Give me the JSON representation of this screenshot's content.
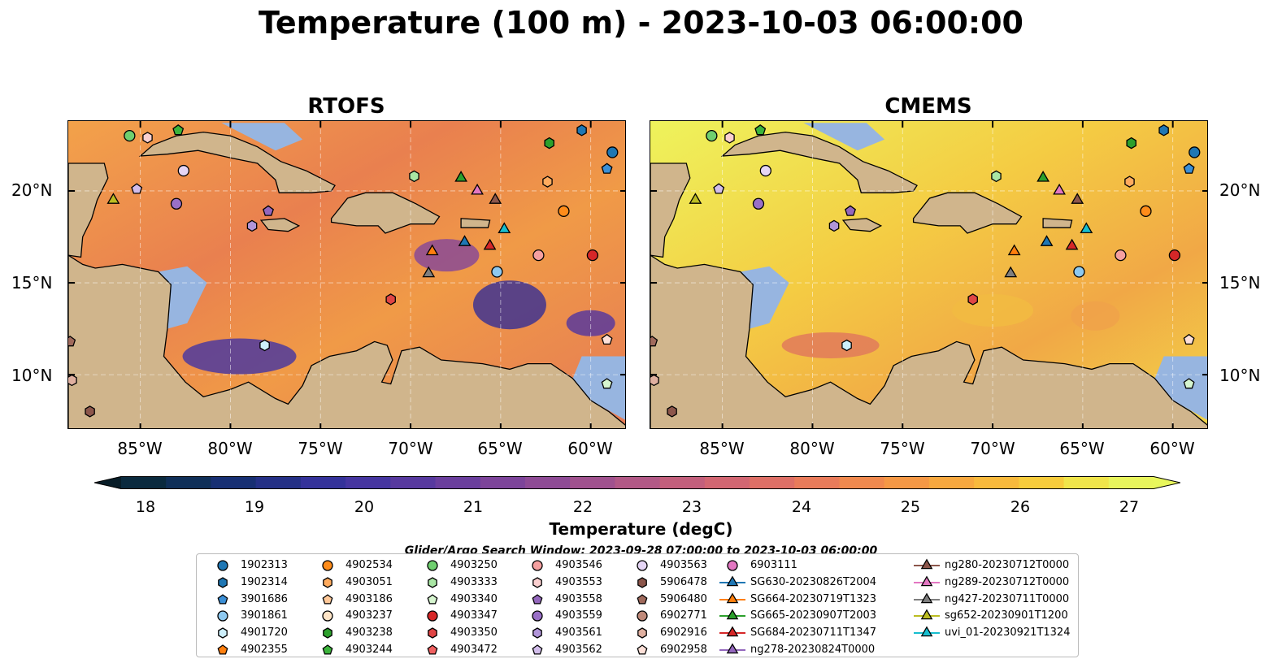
{
  "title": "Temperature (100 m) - 2023-10-03 06:00:00",
  "panels": [
    {
      "title": "RTOFS",
      "variant": "warm"
    },
    {
      "title": "CMEMS",
      "variant": "yellow"
    }
  ],
  "lat_ticks": [
    "20°N",
    "15°N",
    "10°N"
  ],
  "lat_tick_values": [
    20,
    15,
    10
  ],
  "lon_ticks": [
    "85°W",
    "80°W",
    "75°W",
    "70°W",
    "65°W",
    "60°W"
  ],
  "lon_tick_values": [
    -85,
    -80,
    -75,
    -70,
    -65,
    -60
  ],
  "colorbar": {
    "label": "Temperature (degC)",
    "ticks": [
      "18",
      "19",
      "20",
      "21",
      "22",
      "23",
      "24",
      "25",
      "26",
      "27"
    ],
    "min": 18,
    "max": 27,
    "step": 0.5,
    "extend": "both",
    "colors": [
      "#0a2a3e",
      "#0f2f58",
      "#172f73",
      "#243086",
      "#34329a",
      "#4535a0",
      "#57399f",
      "#6a3e9d",
      "#7d449a",
      "#8e4a95",
      "#a0518e",
      "#b25886",
      "#c35f7c",
      "#d26672",
      "#de6f66",
      "#e97b5a",
      "#f0894e",
      "#f59845",
      "#f7a83f",
      "#f8b93c",
      "#f7cc3c",
      "#f0e54a",
      "#e8f55c"
    ],
    "under_color": "#081d28",
    "over_color": "#e8f75c"
  },
  "land_color": "#d0b58c",
  "shallow_color": "#97b5e0",
  "search_window": "Glider/Argo Search Window: 2023-09-28 07:00:00 to 2023-10-03 06:00:00",
  "legend": [
    {
      "label": "1902313",
      "marker": "circle",
      "color": "#1f77b4"
    },
    {
      "label": "1902314",
      "marker": "hexagon",
      "color": "#1f77b4"
    },
    {
      "label": "3901686",
      "marker": "pentagon",
      "color": "#3b8fd6"
    },
    {
      "label": "3901861",
      "marker": "circle",
      "color": "#8ec9f0"
    },
    {
      "label": "4901720",
      "marker": "hexagon",
      "color": "#cdeffb"
    },
    {
      "label": "4902355",
      "marker": "pentagon",
      "color": "#ff7f0e"
    },
    {
      "label": "4902534",
      "marker": "circle",
      "color": "#ff8c1a"
    },
    {
      "label": "4903051",
      "marker": "hexagon",
      "color": "#ffab5e"
    },
    {
      "label": "4903186",
      "marker": "pentagon",
      "color": "#ffc999"
    },
    {
      "label": "4903237",
      "marker": "circle",
      "color": "#ffe5c7"
    },
    {
      "label": "4903238",
      "marker": "hexagon",
      "color": "#2ca02c"
    },
    {
      "label": "4903244",
      "marker": "pentagon",
      "color": "#3cb43c"
    },
    {
      "label": "4903250",
      "marker": "circle",
      "color": "#6fcf6f"
    },
    {
      "label": "4903333",
      "marker": "hexagon",
      "color": "#a9e6a4"
    },
    {
      "label": "4903340",
      "marker": "pentagon",
      "color": "#d6f5cf"
    },
    {
      "label": "4903347",
      "marker": "circle",
      "color": "#d62728"
    },
    {
      "label": "4903350",
      "marker": "hexagon",
      "color": "#e04545"
    },
    {
      "label": "4903472",
      "marker": "pentagon",
      "color": "#f06060"
    },
    {
      "label": "4903546",
      "marker": "circle",
      "color": "#f5a0a0"
    },
    {
      "label": "4903553",
      "marker": "hexagon",
      "color": "#fbd0d0"
    },
    {
      "label": "4903558",
      "marker": "pentagon",
      "color": "#9467bd"
    },
    {
      "label": "4903559",
      "marker": "circle",
      "color": "#9a70c7"
    },
    {
      "label": "4903561",
      "marker": "hexagon",
      "color": "#b195d9"
    },
    {
      "label": "4903562",
      "marker": "pentagon",
      "color": "#d2bdeb"
    },
    {
      "label": "4903563",
      "marker": "circle",
      "color": "#e5d5f5"
    },
    {
      "label": "5906478",
      "marker": "hexagon",
      "color": "#8c564b"
    },
    {
      "label": "5906480",
      "marker": "pentagon",
      "color": "#a06a5c"
    },
    {
      "label": "6902771",
      "marker": "circle",
      "color": "#c08a7a"
    },
    {
      "label": "6902916",
      "marker": "hexagon",
      "color": "#e0b0a0"
    },
    {
      "label": "6902958",
      "marker": "pentagon",
      "color": "#fde0d8"
    },
    {
      "label": "6903111",
      "marker": "circle",
      "color": "#e377c2"
    },
    {
      "label": "SG630-20230826T2004",
      "marker": "triangle-line",
      "color": "#1f77b4"
    },
    {
      "label": "SG664-20230719T1323",
      "marker": "triangle-line",
      "color": "#ff7f0e"
    },
    {
      "label": "SG665-20230907T2003",
      "marker": "triangle-line",
      "color": "#2ca02c"
    },
    {
      "label": "SG684-20230711T1347",
      "marker": "triangle-line",
      "color": "#d62728"
    },
    {
      "label": "ng278-20230824T0000",
      "marker": "triangle-line",
      "color": "#9467bd"
    },
    {
      "label": "ng280-20230712T0000",
      "marker": "triangle-line",
      "color": "#8c564b"
    },
    {
      "label": "ng289-20230712T0000",
      "marker": "triangle-line",
      "color": "#e377c2"
    },
    {
      "label": "ng427-20230711T0000",
      "marker": "triangle-line",
      "color": "#7f7f7f"
    },
    {
      "label": "sg652-20230901T1200",
      "marker": "triangle-line",
      "color": "#bcbd22"
    },
    {
      "label": "uvi_01-20230921T1324",
      "marker": "triangle-line",
      "color": "#17becf"
    }
  ],
  "platforms": [
    {
      "id": "4903250",
      "lon": -85.6,
      "lat": 23.0
    },
    {
      "id": "4903553",
      "lon": -84.6,
      "lat": 22.9
    },
    {
      "id": "4903244",
      "lon": -82.9,
      "lat": 23.3
    },
    {
      "id": "4903563",
      "lon": -82.6,
      "lat": 21.1
    },
    {
      "id": "4903562",
      "lon": -85.2,
      "lat": 20.1
    },
    {
      "id": "4903559",
      "lon": -83.0,
      "lat": 19.3
    },
    {
      "id": "sg652-20230901T1200",
      "lon": -86.5,
      "lat": 19.5
    },
    {
      "id": "4903558",
      "lon": -77.9,
      "lat": 18.9
    },
    {
      "id": "4903561",
      "lon": -78.8,
      "lat": 18.1
    },
    {
      "id": "4903333",
      "lon": -69.8,
      "lat": 20.8
    },
    {
      "id": "SG665-20230907T2003",
      "lon": -67.2,
      "lat": 20.7
    },
    {
      "id": "ng289-20230712T0000",
      "lon": -66.3,
      "lat": 20.0
    },
    {
      "id": "ng280-20230712T0000",
      "lon": -65.3,
      "lat": 19.5
    },
    {
      "id": "4903051",
      "lon": -62.4,
      "lat": 20.5
    },
    {
      "id": "4903238",
      "lon": -62.3,
      "lat": 22.6
    },
    {
      "id": "1902314",
      "lon": -60.5,
      "lat": 23.3
    },
    {
      "id": "1902313",
      "lon": -58.8,
      "lat": 22.1
    },
    {
      "id": "3901686",
      "lon": -59.1,
      "lat": 21.2
    },
    {
      "id": "4902534",
      "lon": -61.5,
      "lat": 18.9
    },
    {
      "id": "SG630-20230826T2004",
      "lon": -67.0,
      "lat": 17.2
    },
    {
      "id": "SG684-20230711T1347",
      "lon": -65.6,
      "lat": 17.0
    },
    {
      "id": "uvi_01-20230921T1324",
      "lon": -64.8,
      "lat": 17.9
    },
    {
      "id": "SG664-20230719T1323",
      "lon": -68.8,
      "lat": 16.7
    },
    {
      "id": "ng427-20230711T0000",
      "lon": -69.0,
      "lat": 15.5
    },
    {
      "id": "4903546",
      "lon": -62.9,
      "lat": 16.5
    },
    {
      "id": "4903347",
      "lon": -59.9,
      "lat": 16.5
    },
    {
      "id": "3901861",
      "lon": -65.2,
      "lat": 15.6
    },
    {
      "id": "4903350",
      "lon": -71.1,
      "lat": 14.1
    },
    {
      "id": "4901720",
      "lon": -78.1,
      "lat": 11.6
    },
    {
      "id": "6902958",
      "lon": -59.1,
      "lat": 11.9
    },
    {
      "id": "4903340",
      "lon": -59.1,
      "lat": 9.5
    },
    {
      "id": "6902916",
      "lon": -88.8,
      "lat": 9.7
    },
    {
      "id": "5906480",
      "lon": -88.9,
      "lat": 11.8
    },
    {
      "id": "5906478",
      "lon": -87.8,
      "lat": 8.0
    }
  ]
}
